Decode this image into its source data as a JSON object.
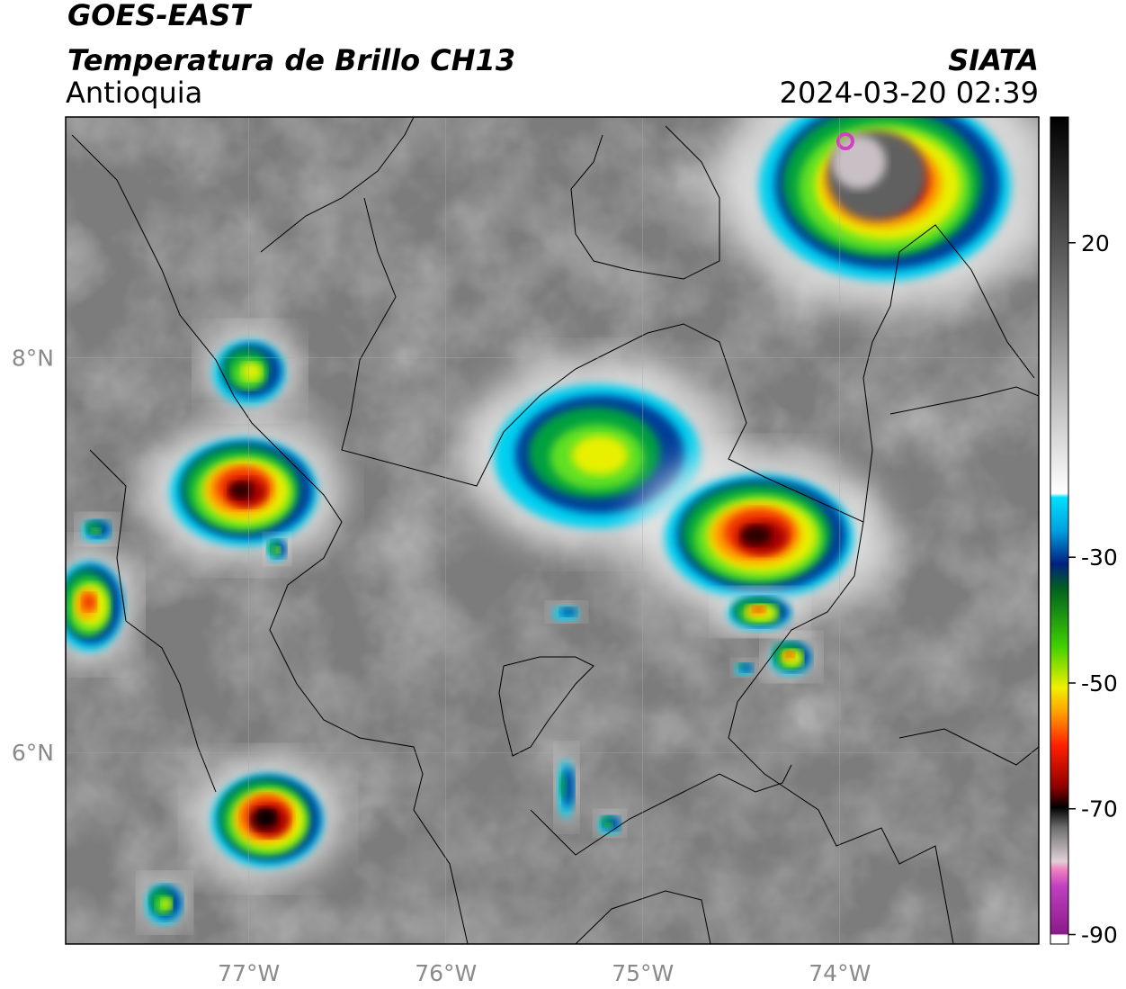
{
  "header": {
    "satellite": "GOES-EAST",
    "product": "Temperatura de Brillo CH13",
    "region": "Antioquia",
    "source": "SIATA",
    "datetime": "2024-03-20 02:39"
  },
  "map": {
    "xlim": [
      -77.93,
      -72.99
    ],
    "ylim": [
      5.03,
      9.22
    ],
    "xticks": [
      {
        "value": -77,
        "label": "77°W"
      },
      {
        "value": -76,
        "label": "76°W"
      },
      {
        "value": -75,
        "label": "75°W"
      },
      {
        "value": -74,
        "label": "74°W"
      }
    ],
    "yticks": [
      {
        "value": 6,
        "label": "6°N"
      },
      {
        "value": 8,
        "label": "8°N"
      }
    ],
    "grid": true
  },
  "colorbar": {
    "ylim": [
      -91.5,
      40
    ],
    "yticks": [
      -90,
      -70,
      -50,
      -30,
      20
    ]
  }
}
